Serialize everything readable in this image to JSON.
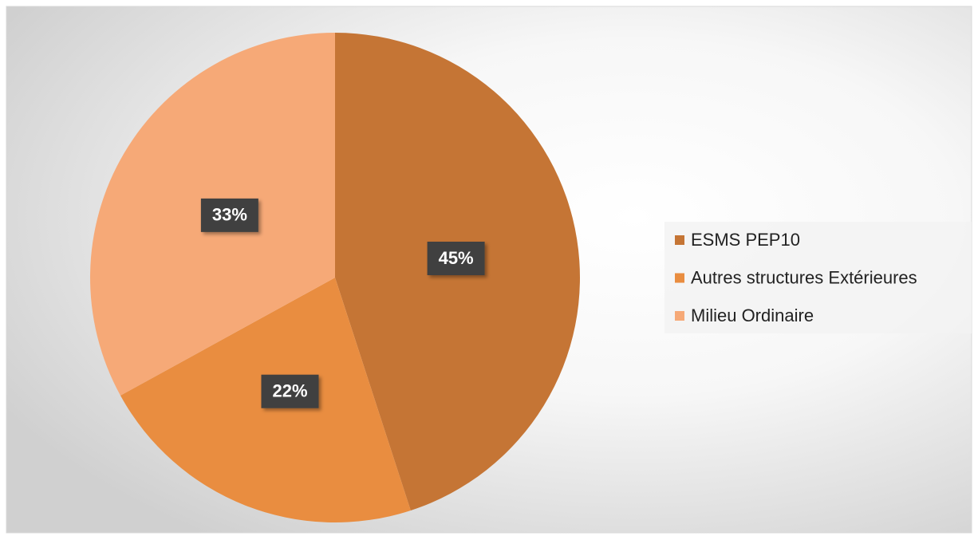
{
  "chart_data": {
    "type": "pie",
    "categories": [
      "ESMS PEP10",
      "Autres structures Extérieures",
      "Milieu Ordinaire"
    ],
    "values": [
      45,
      22,
      33
    ],
    "value_labels": [
      "45%",
      "22%",
      "33%"
    ],
    "colors": [
      "#c57535",
      "#e98d40",
      "#f6a977"
    ],
    "legend": "right"
  }
}
